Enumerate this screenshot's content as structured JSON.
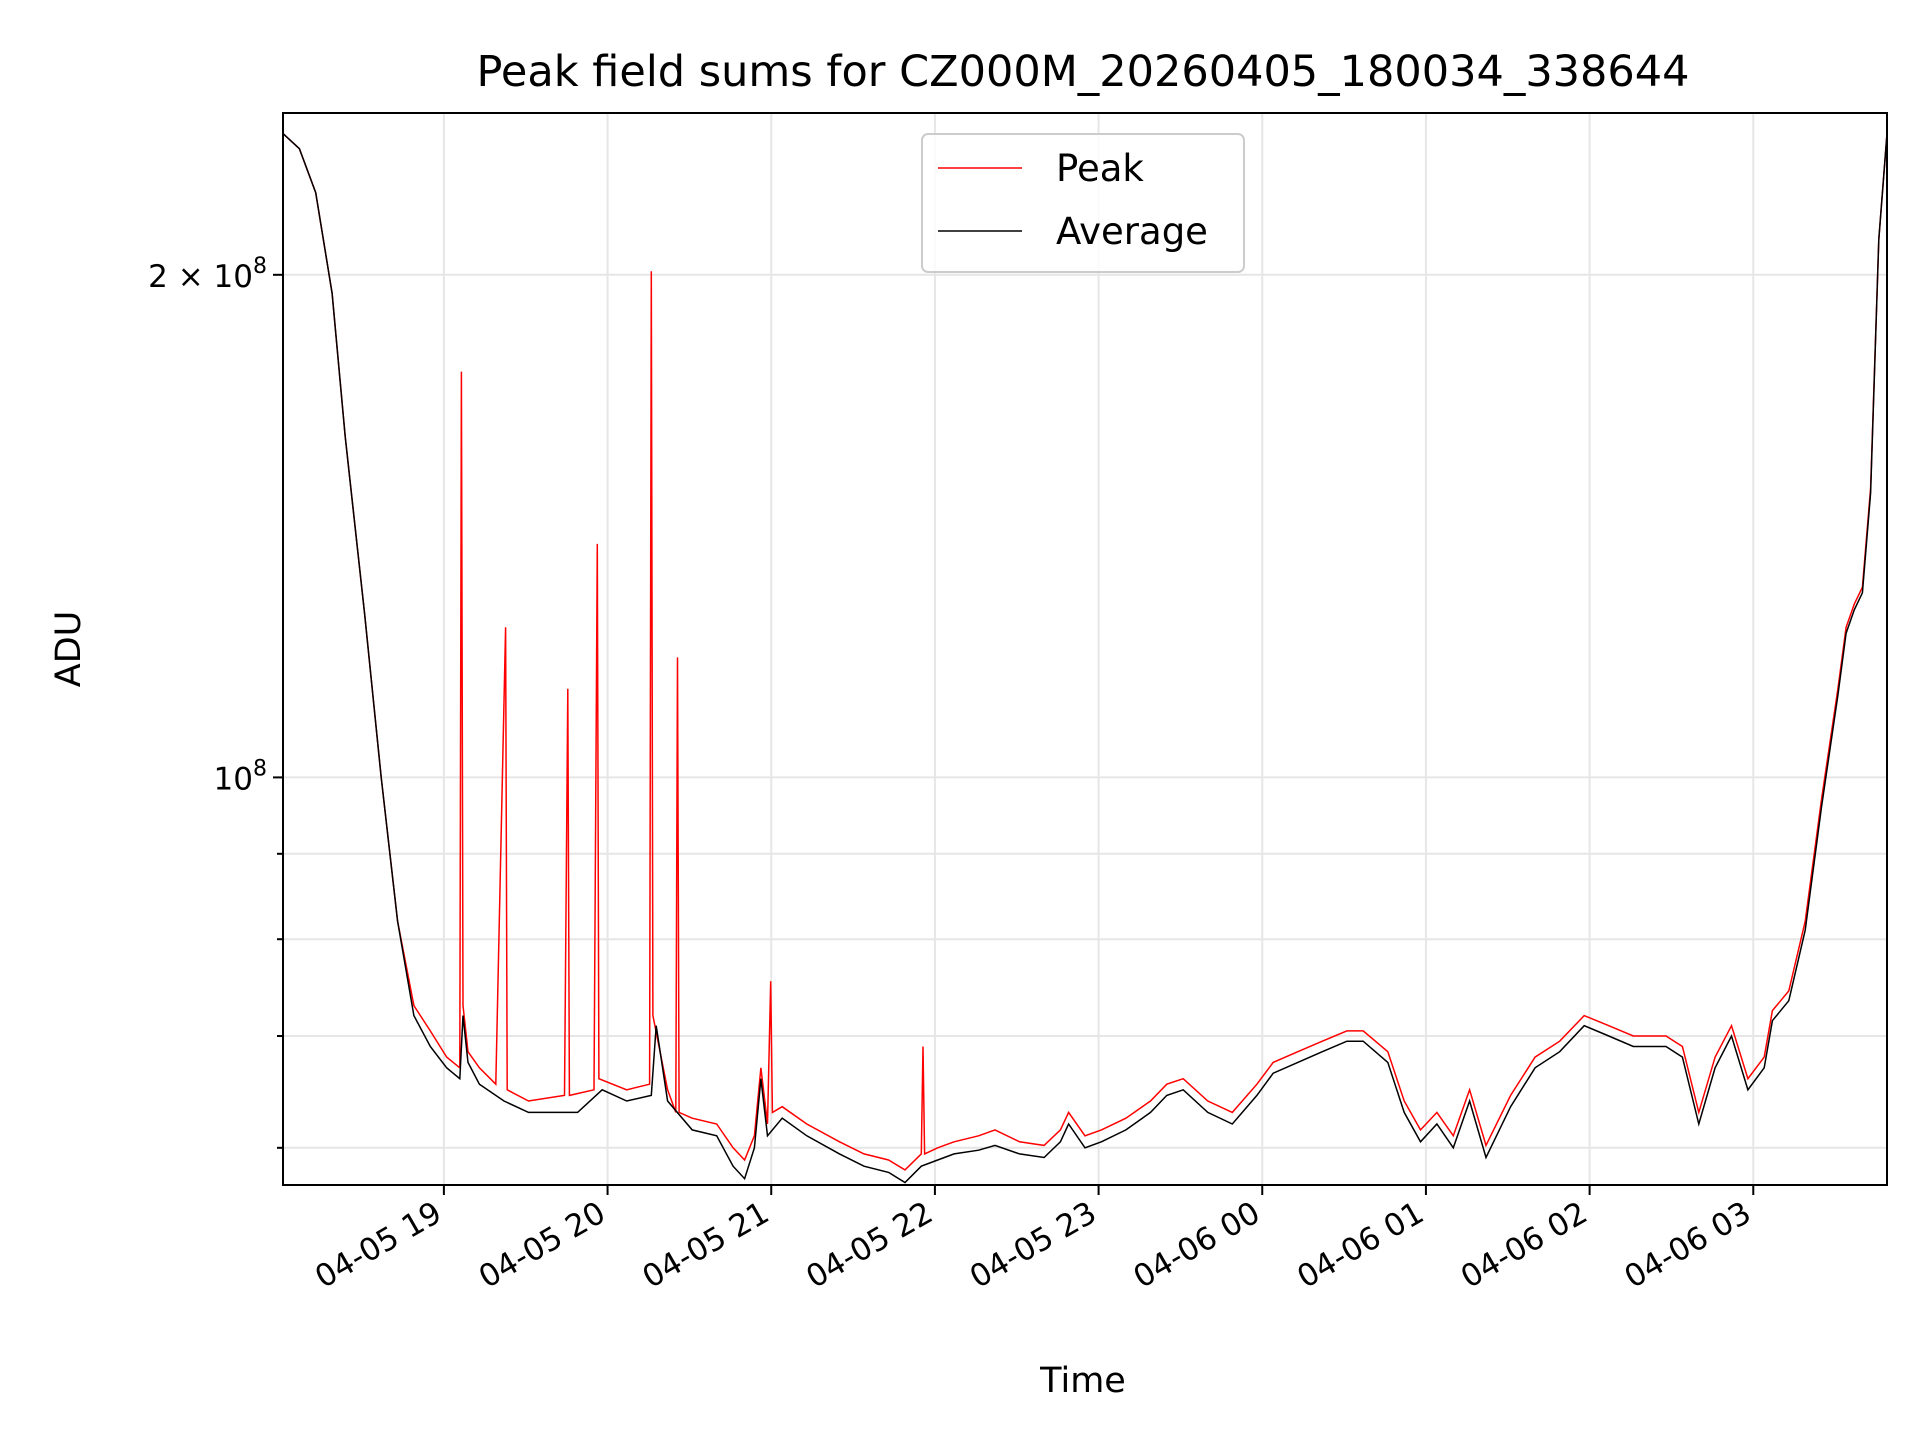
{
  "chart_data": {
    "type": "line",
    "title": "Peak field sums for CZ000M_20260405_180034_338644",
    "xlabel": "Time",
    "ylabel": "ADU",
    "yscale": "log",
    "ylim": [
      57000000,
      250000000
    ],
    "xlim": [
      0,
      9.8
    ],
    "grid": true,
    "legend_position": "top-center",
    "x_ticks": [
      {
        "x": 0.983,
        "label": "04-05 19"
      },
      {
        "x": 1.983,
        "label": "04-05 20"
      },
      {
        "x": 2.983,
        "label": "04-05 21"
      },
      {
        "x": 3.983,
        "label": "04-05 22"
      },
      {
        "x": 4.983,
        "label": "04-05 23"
      },
      {
        "x": 5.983,
        "label": "04-06 00"
      },
      {
        "x": 6.983,
        "label": "04-06 01"
      },
      {
        "x": 7.983,
        "label": "04-06 02"
      },
      {
        "x": 8.983,
        "label": "04-06 03"
      }
    ],
    "y_major_ticks": [
      {
        "value": 100000000,
        "base": "10",
        "exp": "8"
      },
      {
        "value": 200000000,
        "base": "2 × 10",
        "exp": "8"
      }
    ],
    "y_minor_ticks": [
      60000000,
      70000000,
      80000000,
      90000000
    ],
    "series": [
      {
        "name": "Average",
        "color": "#000000",
        "points": [
          [
            0.0,
            243000000.0
          ],
          [
            0.1,
            238000000.0
          ],
          [
            0.2,
            224000000.0
          ],
          [
            0.3,
            195000000.0
          ],
          [
            0.38,
            160000000.0
          ],
          [
            0.5,
            125000000.0
          ],
          [
            0.6,
            100000000.0
          ],
          [
            0.7,
            82000000.0
          ],
          [
            0.8,
            72000000.0
          ],
          [
            0.9,
            69000000.0
          ],
          [
            1.0,
            67000000.0
          ],
          [
            1.08,
            66000000.0
          ],
          [
            1.1,
            72000000.0
          ],
          [
            1.13,
            67500000.0
          ],
          [
            1.2,
            65500000.0
          ],
          [
            1.35,
            64000000.0
          ],
          [
            1.5,
            63000000.0
          ],
          [
            1.8,
            63000000.0
          ],
          [
            1.95,
            65000000.0
          ],
          [
            2.1,
            64000000.0
          ],
          [
            2.25,
            64500000.0
          ],
          [
            2.28,
            71000000.0
          ],
          [
            2.35,
            64000000.0
          ],
          [
            2.5,
            61500000.0
          ],
          [
            2.65,
            61000000.0
          ],
          [
            2.75,
            58500000.0
          ],
          [
            2.82,
            57500000.0
          ],
          [
            2.88,
            60000000.0
          ],
          [
            2.92,
            66000000.0
          ],
          [
            2.96,
            61000000.0
          ],
          [
            3.05,
            62500000.0
          ],
          [
            3.2,
            61000000.0
          ],
          [
            3.4,
            59500000.0
          ],
          [
            3.55,
            58500000.0
          ],
          [
            3.7,
            58000000.0
          ],
          [
            3.8,
            57200000.0
          ],
          [
            3.9,
            58500000.0
          ],
          [
            4.0,
            59000000.0
          ],
          [
            4.1,
            59500000.0
          ],
          [
            4.25,
            59800000.0
          ],
          [
            4.35,
            60200000.0
          ],
          [
            4.5,
            59500000.0
          ],
          [
            4.65,
            59200000.0
          ],
          [
            4.75,
            60500000.0
          ],
          [
            4.8,
            62000000.0
          ],
          [
            4.9,
            60000000.0
          ],
          [
            5.0,
            60500000.0
          ],
          [
            5.15,
            61500000.0
          ],
          [
            5.3,
            63000000.0
          ],
          [
            5.4,
            64500000.0
          ],
          [
            5.5,
            65000000.0
          ],
          [
            5.65,
            63000000.0
          ],
          [
            5.8,
            62000000.0
          ],
          [
            5.95,
            64500000.0
          ],
          [
            6.05,
            66500000.0
          ],
          [
            6.2,
            67500000.0
          ],
          [
            6.35,
            68500000.0
          ],
          [
            6.5,
            69500000.0
          ],
          [
            6.6,
            69500000.0
          ],
          [
            6.75,
            67500000.0
          ],
          [
            6.85,
            63000000.0
          ],
          [
            6.95,
            60500000.0
          ],
          [
            7.05,
            62000000.0
          ],
          [
            7.15,
            60000000.0
          ],
          [
            7.25,
            64000000.0
          ],
          [
            7.35,
            59200000.0
          ],
          [
            7.5,
            63500000.0
          ],
          [
            7.65,
            67000000.0
          ],
          [
            7.8,
            68500000.0
          ],
          [
            7.95,
            71000000.0
          ],
          [
            8.1,
            70000000.0
          ],
          [
            8.25,
            69000000.0
          ],
          [
            8.45,
            69000000.0
          ],
          [
            8.55,
            68000000.0
          ],
          [
            8.65,
            62000000.0
          ],
          [
            8.75,
            67000000.0
          ],
          [
            8.85,
            70000000.0
          ],
          [
            8.95,
            65000000.0
          ],
          [
            9.05,
            67000000.0
          ],
          [
            9.1,
            71500000.0
          ],
          [
            9.2,
            73500000.0
          ],
          [
            9.3,
            81000000.0
          ],
          [
            9.4,
            96000000.0
          ],
          [
            9.5,
            112000000.0
          ],
          [
            9.55,
            122000000.0
          ],
          [
            9.6,
            126000000.0
          ],
          [
            9.65,
            129000000.0
          ],
          [
            9.7,
            148000000.0
          ],
          [
            9.75,
            210000000.0
          ],
          [
            9.8,
            243000000.0
          ]
        ]
      },
      {
        "name": "Peak",
        "color": "#ff0000",
        "points": [
          [
            0.0,
            243000000.0
          ],
          [
            0.1,
            238000000.0
          ],
          [
            0.2,
            224000000.0
          ],
          [
            0.3,
            195000000.0
          ],
          [
            0.38,
            160000000.0
          ],
          [
            0.5,
            125000000.0
          ],
          [
            0.6,
            100000000.0
          ],
          [
            0.7,
            82000000.0
          ],
          [
            0.8,
            73000000.0
          ],
          [
            0.9,
            70500000.0
          ],
          [
            1.0,
            68000000.0
          ],
          [
            1.08,
            67000000.0
          ],
          [
            1.09,
            175000000.0
          ],
          [
            1.1,
            73000000.0
          ],
          [
            1.13,
            68500000.0
          ],
          [
            1.2,
            67000000.0
          ],
          [
            1.3,
            65500000.0
          ],
          [
            1.36,
            123000000.0
          ],
          [
            1.37,
            65000000.0
          ],
          [
            1.5,
            64000000.0
          ],
          [
            1.72,
            64500000.0
          ],
          [
            1.74,
            113000000.0
          ],
          [
            1.75,
            64500000.0
          ],
          [
            1.9,
            65000000.0
          ],
          [
            1.92,
            138000000.0
          ],
          [
            1.93,
            66000000.0
          ],
          [
            2.1,
            65000000.0
          ],
          [
            2.24,
            65500000.0
          ],
          [
            2.25,
            201000000.0
          ],
          [
            2.26,
            72000000.0
          ],
          [
            2.35,
            65000000.0
          ],
          [
            2.4,
            63000000.0
          ],
          [
            2.41,
            118000000.0
          ],
          [
            2.42,
            63000000.0
          ],
          [
            2.5,
            62500000.0
          ],
          [
            2.65,
            62000000.0
          ],
          [
            2.75,
            60000000.0
          ],
          [
            2.82,
            59000000.0
          ],
          [
            2.88,
            61000000.0
          ],
          [
            2.92,
            67000000.0
          ],
          [
            2.96,
            62000000.0
          ],
          [
            2.98,
            75500000.0
          ],
          [
            2.99,
            63000000.0
          ],
          [
            3.05,
            63500000.0
          ],
          [
            3.2,
            62000000.0
          ],
          [
            3.4,
            60500000.0
          ],
          [
            3.55,
            59500000.0
          ],
          [
            3.7,
            59000000.0
          ],
          [
            3.8,
            58200000.0
          ],
          [
            3.9,
            59500000.0
          ],
          [
            3.91,
            69000000.0
          ],
          [
            3.92,
            59500000.0
          ],
          [
            4.0,
            60000000.0
          ],
          [
            4.1,
            60500000.0
          ],
          [
            4.25,
            61000000.0
          ],
          [
            4.35,
            61500000.0
          ],
          [
            4.5,
            60500000.0
          ],
          [
            4.65,
            60200000.0
          ],
          [
            4.75,
            61500000.0
          ],
          [
            4.8,
            63000000.0
          ],
          [
            4.9,
            61000000.0
          ],
          [
            5.0,
            61500000.0
          ],
          [
            5.15,
            62500000.0
          ],
          [
            5.3,
            64000000.0
          ],
          [
            5.4,
            65500000.0
          ],
          [
            5.5,
            66000000.0
          ],
          [
            5.65,
            64000000.0
          ],
          [
            5.8,
            63000000.0
          ],
          [
            5.95,
            65500000.0
          ],
          [
            6.05,
            67500000.0
          ],
          [
            6.2,
            68500000.0
          ],
          [
            6.35,
            69500000.0
          ],
          [
            6.5,
            70500000.0
          ],
          [
            6.6,
            70500000.0
          ],
          [
            6.75,
            68500000.0
          ],
          [
            6.85,
            64000000.0
          ],
          [
            6.95,
            61500000.0
          ],
          [
            7.05,
            63000000.0
          ],
          [
            7.15,
            61000000.0
          ],
          [
            7.25,
            65000000.0
          ],
          [
            7.35,
            60200000.0
          ],
          [
            7.5,
            64500000.0
          ],
          [
            7.65,
            68000000.0
          ],
          [
            7.8,
            69500000.0
          ],
          [
            7.95,
            72000000.0
          ],
          [
            8.1,
            71000000.0
          ],
          [
            8.25,
            70000000.0
          ],
          [
            8.45,
            70000000.0
          ],
          [
            8.55,
            69000000.0
          ],
          [
            8.65,
            63000000.0
          ],
          [
            8.75,
            68000000.0
          ],
          [
            8.85,
            71000000.0
          ],
          [
            8.95,
            66000000.0
          ],
          [
            9.05,
            68000000.0
          ],
          [
            9.1,
            72500000.0
          ],
          [
            9.2,
            74500000.0
          ],
          [
            9.3,
            82000000.0
          ],
          [
            9.4,
            97000000.0
          ],
          [
            9.5,
            113000000.0
          ],
          [
            9.55,
            123000000.0
          ],
          [
            9.6,
            127000000.0
          ],
          [
            9.65,
            130000000.0
          ],
          [
            9.7,
            149000000.0
          ],
          [
            9.75,
            210000000.0
          ],
          [
            9.8,
            243000000.0
          ]
        ]
      }
    ],
    "legend": [
      {
        "name": "Peak",
        "color": "#ff0000"
      },
      {
        "name": "Average",
        "color": "#000000"
      }
    ]
  }
}
